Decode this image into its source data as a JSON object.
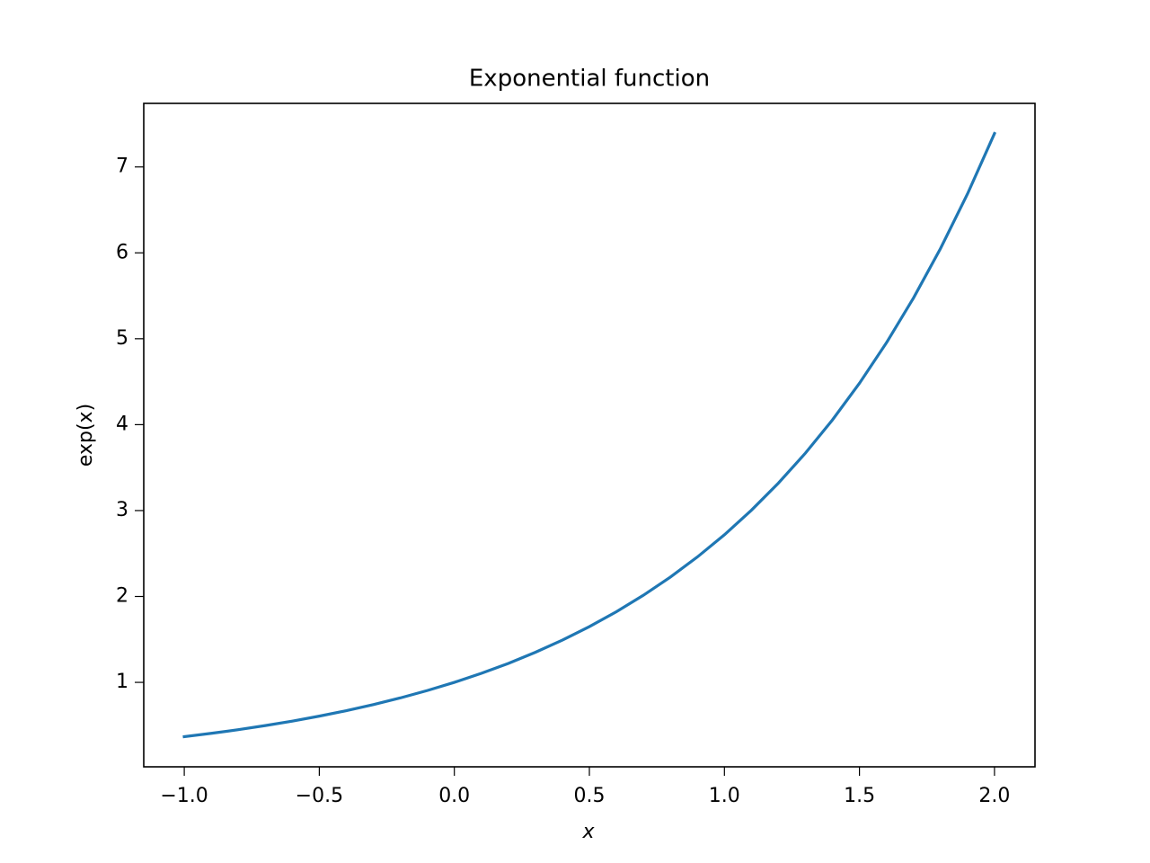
{
  "chart_data": {
    "type": "line",
    "title": "Exponential function",
    "xlabel": "x",
    "ylabel": "exp(x)",
    "x": [
      -1.0,
      -0.9,
      -0.8,
      -0.7,
      -0.6,
      -0.5,
      -0.4,
      -0.3,
      -0.2,
      -0.1,
      0.0,
      0.1,
      0.2,
      0.3,
      0.4,
      0.5,
      0.6,
      0.7,
      0.8,
      0.9,
      1.0,
      1.1,
      1.2,
      1.3,
      1.4,
      1.5,
      1.6,
      1.7,
      1.8,
      1.9,
      2.0
    ],
    "series": [
      {
        "color": "#1f77b4",
        "values": [
          0.368,
          0.407,
          0.449,
          0.497,
          0.549,
          0.607,
          0.67,
          0.741,
          0.819,
          0.905,
          1.0,
          1.105,
          1.221,
          1.35,
          1.492,
          1.649,
          1.822,
          2.014,
          2.226,
          2.46,
          2.718,
          3.004,
          3.32,
          3.669,
          4.055,
          4.482,
          4.953,
          5.474,
          6.05,
          6.686,
          7.389
        ]
      }
    ],
    "xlim": [
      -1.15,
      2.15
    ],
    "ylim": [
      0.017,
      7.74
    ],
    "xticks": [
      {
        "value": -1.0,
        "label": "−1.0"
      },
      {
        "value": -0.5,
        "label": "−0.5"
      },
      {
        "value": 0.0,
        "label": "0.0"
      },
      0.5,
      {
        "value": 1.0,
        "label": "1.0"
      },
      1.5,
      {
        "value": 2.0,
        "label": "2.0"
      }
    ],
    "yticks": [
      1,
      2,
      3,
      4,
      5,
      6,
      7
    ],
    "grid": false
  }
}
